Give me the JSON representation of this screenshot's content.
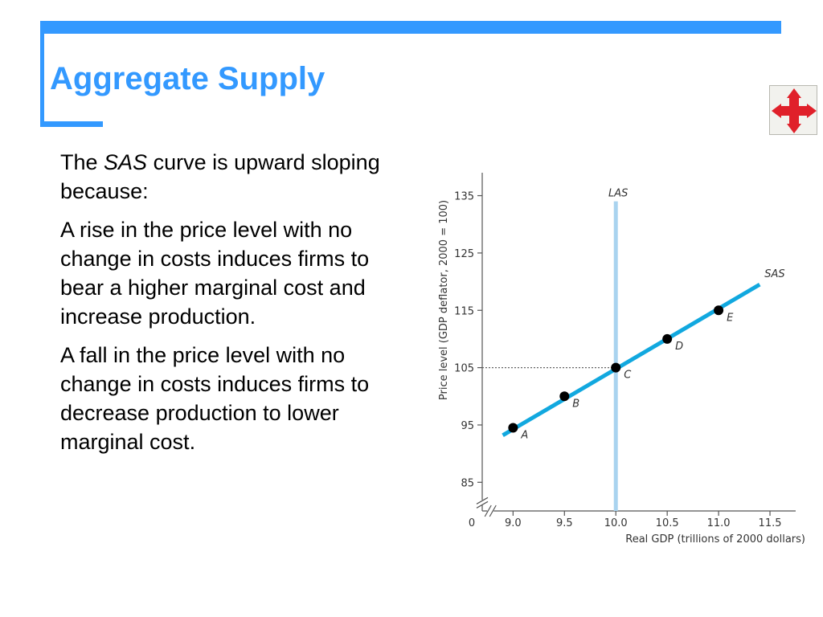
{
  "slide": {
    "title": "Aggregate Supply",
    "accent_color": "#3399ff",
    "nav_icon": "four-way-arrow-icon",
    "body": {
      "p1_before": "The ",
      "p1_term": "SAS",
      "p1_after": " curve is upward sloping because:",
      "p2": "A rise in the price level with no change in costs induces firms to bear a higher marginal cost and increase production.",
      "p3": "A fall in the price level with no change in costs induces firms to decrease production to lower marginal cost."
    }
  },
  "chart_data": {
    "type": "line",
    "title": "",
    "xlabel": "Real GDP (trillions of 2000 dollars)",
    "ylabel": "Price level (GDP deflator, 2000 = 100)",
    "x_ticks": [
      "9.0",
      "9.5",
      "10.0",
      "10.5",
      "11.0",
      "11.5"
    ],
    "y_ticks": [
      "85",
      "95",
      "105",
      "115",
      "125",
      "135"
    ],
    "origin_label": "0",
    "xlim": [
      8.7,
      11.75
    ],
    "ylim": [
      80,
      139
    ],
    "axis_breaks": true,
    "grid": false,
    "series": [
      {
        "name": "SAS",
        "color": "#11a8df",
        "line": [
          [
            8.9,
            93.2
          ],
          [
            11.4,
            119.5
          ]
        ],
        "points": [
          {
            "label": "A",
            "x": 9.0,
            "y": 94.5
          },
          {
            "label": "B",
            "x": 9.5,
            "y": 100
          },
          {
            "label": "C",
            "x": 10.0,
            "y": 105
          },
          {
            "label": "D",
            "x": 10.5,
            "y": 110
          },
          {
            "label": "E",
            "x": 11.0,
            "y": 115
          }
        ]
      },
      {
        "name": "LAS",
        "color": "#a9d3ef",
        "x": 10.0,
        "y_range": [
          80,
          134
        ]
      }
    ],
    "reference_line": {
      "y": 105,
      "x_to": 10.0,
      "style": "dotted"
    }
  }
}
